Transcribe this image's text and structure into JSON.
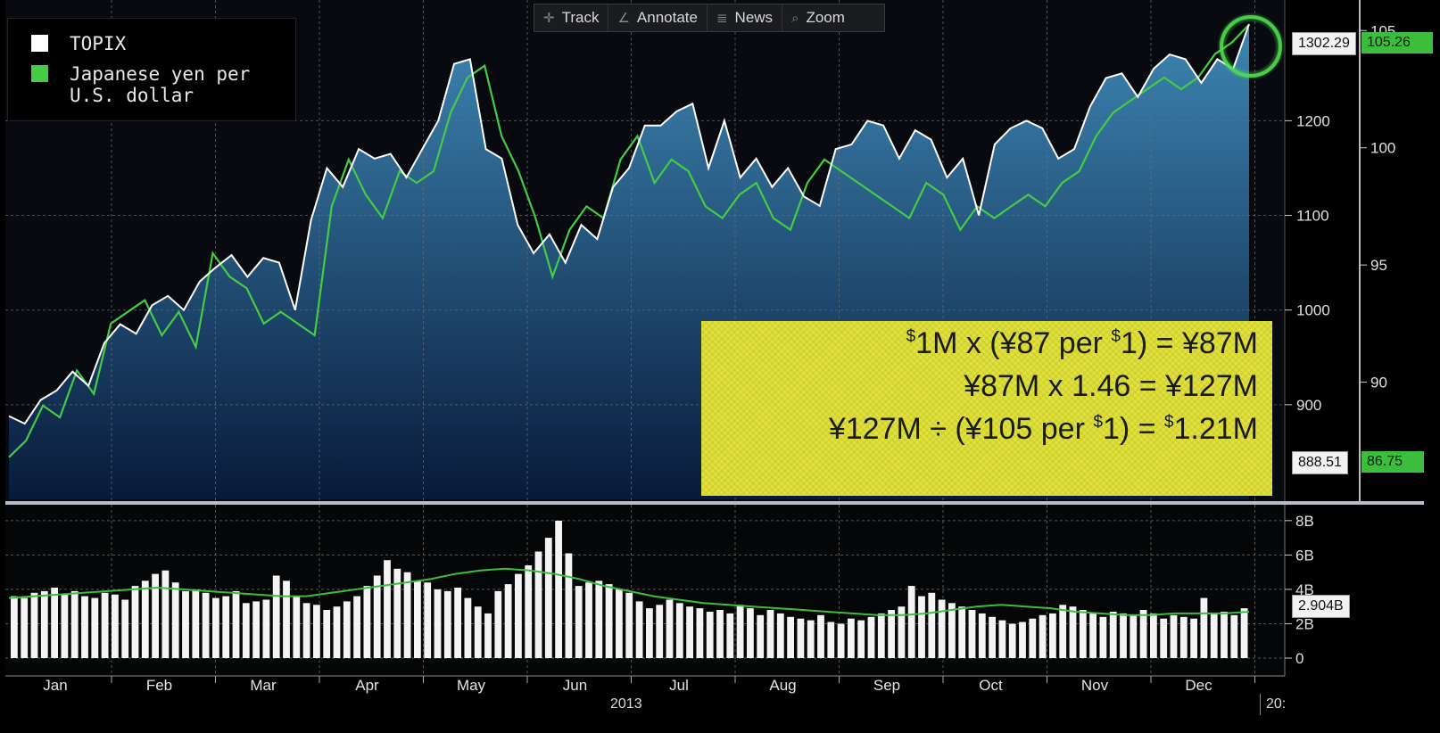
{
  "legend": {
    "items": [
      {
        "label_line1": "TOPIX",
        "label_line2": "",
        "color": "#ffffff"
      },
      {
        "label_line1": "Japanese yen per",
        "label_line2": "U.S. dollar",
        "color": "#44cc44"
      }
    ]
  },
  "toolbar": {
    "track_label": "Track",
    "annotate_label": "Annotate",
    "news_label": "News",
    "zoom_label": "Zoom",
    "track_icon": "crosshair-icon",
    "annotate_icon": "pencil-icon",
    "news_icon": "news-icon",
    "zoom_icon": "magnifier-icon"
  },
  "formula": {
    "line1_a": "$",
    "line1_b": "1M x (¥87 per ",
    "line1_c": "$",
    "line1_d": "1) = ¥87M",
    "line2": "¥87M x 1.46 = ¥127M",
    "line3_a": "¥127M ÷ (¥105 per ",
    "line3_b": "$",
    "line3_c": "1) = ",
    "line3_d": "$",
    "line3_e": "1.21M"
  },
  "labels": {
    "topix_last": "1302.29",
    "yen_last": "105.26",
    "topix_first": "888.51",
    "yen_first": "86.75",
    "volume_last": "2.904B",
    "year": "2013",
    "next_year": "20:"
  },
  "colors": {
    "topix_line": "#ffffff",
    "yen_line": "#44cc44",
    "area_top": "#3d86b3",
    "area_bottom": "#081a3a",
    "highlight_box": "#e2e23a",
    "badge_green": "#3dbd3d"
  },
  "chart_data": [
    {
      "type": "line",
      "title": "",
      "x_axis_labels": [
        "Jan",
        "Feb",
        "Mar",
        "Apr",
        "May",
        "Jun",
        "Jul",
        "Aug",
        "Sep",
        "Oct",
        "Nov",
        "Dec"
      ],
      "year_label": "2013",
      "y_left_ticks": [
        900,
        1000,
        1100,
        1200
      ],
      "y_right_ticks": [
        90,
        95,
        100,
        105
      ],
      "ylim_topix": [
        800,
        1320
      ],
      "ylim_yen": [
        85,
        106
      ],
      "grid": true,
      "legend_position": "top-left",
      "series": [
        {
          "name": "TOPIX",
          "axis": "left",
          "area": true,
          "values": [
            888,
            880,
            905,
            915,
            935,
            920,
            965,
            985,
            975,
            1005,
            1015,
            1000,
            1030,
            1045,
            1058,
            1035,
            1055,
            1050,
            1000,
            1095,
            1150,
            1130,
            1170,
            1160,
            1165,
            1140,
            1170,
            1200,
            1260,
            1265,
            1170,
            1160,
            1090,
            1060,
            1080,
            1050,
            1090,
            1075,
            1130,
            1150,
            1195,
            1195,
            1210,
            1218,
            1150,
            1200,
            1140,
            1160,
            1130,
            1150,
            1120,
            1110,
            1170,
            1175,
            1200,
            1195,
            1160,
            1190,
            1180,
            1140,
            1160,
            1100,
            1175,
            1192,
            1200,
            1192,
            1160,
            1170,
            1215,
            1245,
            1250,
            1225,
            1255,
            1270,
            1265,
            1240,
            1265,
            1255,
            1302
          ]
        },
        {
          "name": "Japanese yen per U.S. dollar",
          "axis": "right",
          "values": [
            86.8,
            87.5,
            89.0,
            88.5,
            90.5,
            89.5,
            92.5,
            93.0,
            93.5,
            92.0,
            93.0,
            91.5,
            95.5,
            94.5,
            94.0,
            92.5,
            93.0,
            92.5,
            92.0,
            97.5,
            99.5,
            98.0,
            97.0,
            99.0,
            98.5,
            99.0,
            101.5,
            103.0,
            103.5,
            100.5,
            99.0,
            97.0,
            94.5,
            96.5,
            97.5,
            97.0,
            99.5,
            100.5,
            98.5,
            99.5,
            99.0,
            97.5,
            97.0,
            98.0,
            98.5,
            97.0,
            96.5,
            98.5,
            99.5,
            99.0,
            98.5,
            98.0,
            97.5,
            97.0,
            98.5,
            98.0,
            96.5,
            97.5,
            97.0,
            97.5,
            98.0,
            97.5,
            98.5,
            99.0,
            100.5,
            101.5,
            102.0,
            102.5,
            103.0,
            102.5,
            103.0,
            104.0,
            104.5,
            105.26
          ]
        }
      ]
    },
    {
      "type": "bar",
      "title": "",
      "y_ticks": [
        "0",
        "2B",
        "4B",
        "6B",
        "8B"
      ],
      "ylim": [
        0,
        8.2
      ],
      "unit": "B",
      "last_value": 2.904,
      "volume_values": [
        3.6,
        3.5,
        3.8,
        3.9,
        4.1,
        3.7,
        3.9,
        3.6,
        3.5,
        3.8,
        3.7,
        3.4,
        4.2,
        4.5,
        4.9,
        5.1,
        4.4,
        3.9,
        4.0,
        3.8,
        3.5,
        3.6,
        3.9,
        3.2,
        3.3,
        3.4,
        4.8,
        4.5,
        3.6,
        3.2,
        3.1,
        2.8,
        3.0,
        3.3,
        3.6,
        4.2,
        4.8,
        5.7,
        5.2,
        5.0,
        4.5,
        4.4,
        4.0,
        3.9,
        4.1,
        3.5,
        3.0,
        2.6,
        3.9,
        4.3,
        4.9,
        5.4,
        6.2,
        7.0,
        8.0,
        6.1,
        4.2,
        4.4,
        4.5,
        4.3,
        4.0,
        3.8,
        3.3,
        2.9,
        3.1,
        3.4,
        3.2,
        3.0,
        2.9,
        2.7,
        2.8,
        2.6,
        3.1,
        2.9,
        2.5,
        2.8,
        2.6,
        2.4,
        2.3,
        2.2,
        2.5,
        2.1,
        2.0,
        2.3,
        2.2,
        2.4,
        2.6,
        2.8,
        3.0,
        4.2,
        3.6,
        3.8,
        3.4,
        3.2,
        3.0,
        2.8,
        2.6,
        2.4,
        2.2,
        2.0,
        2.1,
        2.3,
        2.5,
        2.6,
        3.1,
        3.0,
        2.8,
        2.6,
        2.4,
        2.7,
        2.6,
        2.5,
        2.8,
        2.6,
        2.3,
        2.5,
        2.4,
        2.3,
        3.5,
        2.6,
        2.7,
        2.5,
        2.9
      ],
      "moving_average": [
        3.5,
        3.6,
        3.7,
        3.8,
        3.9,
        4.0,
        4.1,
        4.0,
        3.9,
        3.8,
        3.7,
        3.6,
        3.6,
        3.8,
        4.0,
        4.2,
        4.4,
        4.6,
        4.9,
        5.1,
        5.2,
        5.1,
        4.9,
        4.6,
        4.2,
        3.9,
        3.6,
        3.4,
        3.2,
        3.1,
        3.0,
        2.9,
        2.8,
        2.7,
        2.6,
        2.5,
        2.5,
        2.6,
        2.8,
        3.0,
        3.1,
        3.0,
        2.9,
        2.7,
        2.6,
        2.5,
        2.5,
        2.6,
        2.6,
        2.6,
        2.7
      ]
    }
  ]
}
